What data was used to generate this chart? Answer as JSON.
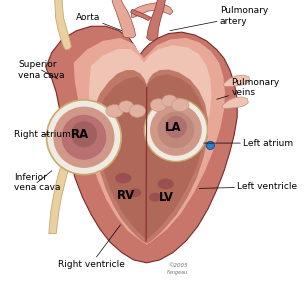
{
  "background_color": "#ffffff",
  "heart_outer_color": "#c8756a",
  "heart_inner_color": "#e8a898",
  "heart_pale": "#f0c4b4",
  "vessel_cream": "#e8d0a0",
  "vessel_cream_edge": "#c8a870",
  "dark_red": "#8b2020",
  "medium_red": "#b84040",
  "ra_ring_color": "#f5f0e8",
  "ra_fill1": "#d09888",
  "ra_fill2": "#b87070",
  "ra_fill3": "#a06060",
  "la_ring_color": "#f5f0e8",
  "la_fill1": "#d09888",
  "la_fill2": "#c08878",
  "blue_dot": "#3080c0",
  "font_size": 6.5,
  "label_font_size": 8.5,
  "annotations": [
    {
      "text": "Aorta",
      "tpos": [
        0.34,
        0.94
      ],
      "apos": [
        0.415,
        0.895
      ],
      "ha": "right",
      "va": "center"
    },
    {
      "text": "Pulmonary\nartery",
      "tpos": [
        0.75,
        0.945
      ],
      "apos": [
        0.58,
        0.895
      ],
      "ha": "left",
      "va": "center"
    },
    {
      "text": "Superior\nvena cava",
      "tpos": [
        0.06,
        0.76
      ],
      "apos": [
        0.195,
        0.73
      ],
      "ha": "left",
      "va": "center"
    },
    {
      "text": "Pulmonary\nveins",
      "tpos": [
        0.79,
        0.7
      ],
      "apos": [
        0.74,
        0.66
      ],
      "ha": "left",
      "va": "center"
    },
    {
      "text": "Right atrium",
      "tpos": [
        0.045,
        0.54
      ],
      "apos": [
        0.165,
        0.54
      ],
      "ha": "left",
      "va": "center"
    },
    {
      "text": "Left atrium",
      "tpos": [
        0.83,
        0.51
      ],
      "apos": [
        0.695,
        0.51
      ],
      "ha": "left",
      "va": "center"
    },
    {
      "text": "Inferior\nvena cava",
      "tpos": [
        0.045,
        0.375
      ],
      "apos": [
        0.175,
        0.415
      ],
      "ha": "left",
      "va": "center"
    },
    {
      "text": "Right ventricle",
      "tpos": [
        0.195,
        0.095
      ],
      "apos": [
        0.41,
        0.23
      ],
      "ha": "left",
      "va": "center"
    },
    {
      "text": "Left ventricle",
      "tpos": [
        0.81,
        0.36
      ],
      "apos": [
        0.68,
        0.355
      ],
      "ha": "left",
      "va": "center"
    }
  ]
}
